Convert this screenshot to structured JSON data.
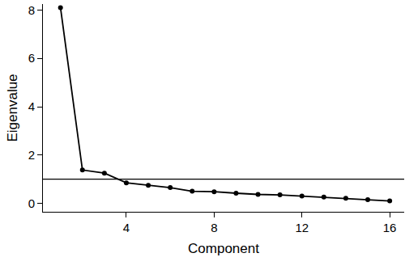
{
  "chart_data": {
    "type": "line",
    "marker": "circle",
    "color": "#000000",
    "x_label": "Component",
    "y_label": "Eigenvalue",
    "x": [
      1,
      2,
      3,
      4,
      5,
      6,
      7,
      8,
      9,
      10,
      11,
      12,
      13,
      14,
      15,
      16
    ],
    "values": [
      8.1,
      1.38,
      1.25,
      0.85,
      0.75,
      0.65,
      0.5,
      0.48,
      0.42,
      0.37,
      0.35,
      0.3,
      0.26,
      0.21,
      0.15,
      0.1
    ],
    "reference_line": 1,
    "xlim": [
      0.2,
      16.66
    ],
    "xticks": [
      4,
      8,
      12,
      16
    ],
    "ylim": [
      -0.35,
      8.25
    ],
    "yticks": [
      0,
      2,
      4,
      6,
      8
    ],
    "grid": false
  }
}
